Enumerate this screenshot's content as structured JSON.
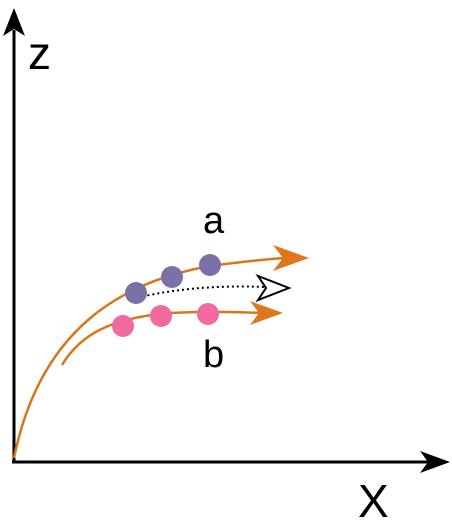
{
  "axes": {
    "vertical_label": "z",
    "horizontal_label": "X"
  },
  "curves": {
    "upper": {
      "label": "a",
      "particle_count": 3,
      "particle_color": "#7b70a8"
    },
    "lower": {
      "label": "b",
      "particle_count": 3,
      "particle_color": "#f06a9e"
    },
    "mean_path_style": "dotted",
    "curve_color": "#d8761c"
  }
}
